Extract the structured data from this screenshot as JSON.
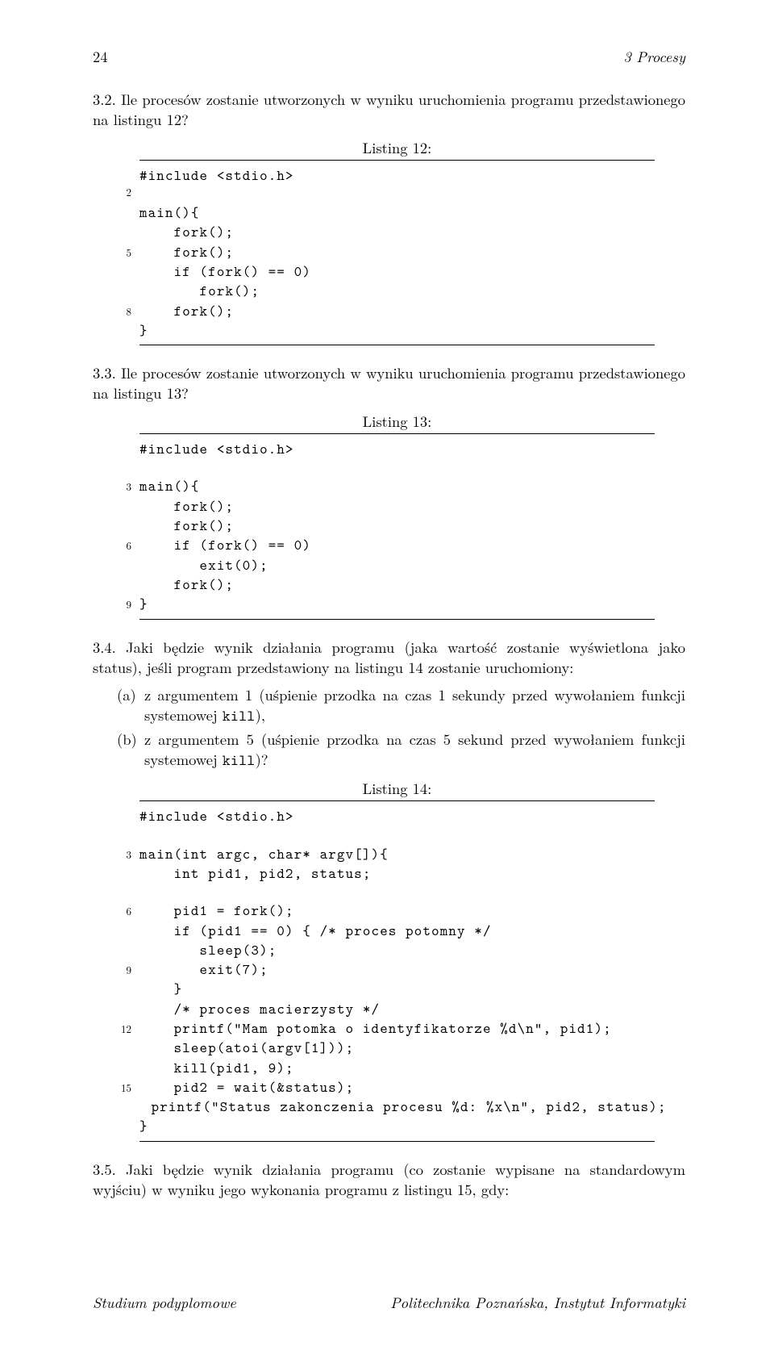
{
  "header": {
    "page_number": "24",
    "chapter": "3 Procesy"
  },
  "q32": {
    "label": "3.2.",
    "text": "Ile procesów zostanie utworzonych w wyniku uruchomienia programu przedstawionego na listingu 12?"
  },
  "listing12": {
    "caption": "Listing 12:",
    "lines": [
      {
        "n": "",
        "code": "#include <stdio.h>"
      },
      {
        "n": "2",
        "code": ""
      },
      {
        "n": "",
        "code": "main(){"
      },
      {
        "n": "",
        "code": "    fork();"
      },
      {
        "n": "5",
        "code": "    fork();"
      },
      {
        "n": "",
        "code": "    if (fork() == 0)"
      },
      {
        "n": "",
        "code": "       fork();"
      },
      {
        "n": "8",
        "code": "    fork();"
      },
      {
        "n": "",
        "code": "}"
      }
    ]
  },
  "q33": {
    "label": "3.3.",
    "text": "Ile procesów zostanie utworzonych w wyniku uruchomienia programu przedstawionego na listingu 13?"
  },
  "listing13": {
    "caption": "Listing 13:",
    "lines": [
      {
        "n": "",
        "code": "#include <stdio.h>"
      },
      {
        "n": "",
        "code": ""
      },
      {
        "n": "3",
        "code": "main(){"
      },
      {
        "n": "",
        "code": "    fork();"
      },
      {
        "n": "",
        "code": "    fork();"
      },
      {
        "n": "6",
        "code": "    if (fork() == 0)"
      },
      {
        "n": "",
        "code": "       exit(0);"
      },
      {
        "n": "",
        "code": "    fork();"
      },
      {
        "n": "9",
        "code": "}"
      }
    ]
  },
  "q34": {
    "label": "3.4.",
    "text": "Jaki będzie wynik działania programu (jaka wartość zostanie wyświetlona jako status), jeśli program przedstawiony na listingu 14 zostanie uruchomiony:"
  },
  "q34_items": {
    "a_label": "(a)",
    "a_pre": "z argumentem 1 (uśpienie przodka na czas 1 sekundy przed wywołaniem funkcji systemowej ",
    "a_tt": "kill",
    "a_post": "),",
    "b_label": "(b)",
    "b_pre": "z argumentem 5 (uśpienie przodka na czas 5 sekund przed wywołaniem funkcji systemowej ",
    "b_tt": "kill",
    "b_post": ")?"
  },
  "listing14": {
    "caption": "Listing 14:",
    "lines": [
      {
        "n": "",
        "code": "#include <stdio.h>"
      },
      {
        "n": "",
        "code": ""
      },
      {
        "n": "3",
        "code": "main(int argc, char* argv[]){"
      },
      {
        "n": "",
        "code": "    int pid1, pid2, status;"
      },
      {
        "n": "",
        "code": ""
      },
      {
        "n": "6",
        "code": "    pid1 = fork();"
      },
      {
        "n": "",
        "code": "    if (pid1 == 0) { /* proces potomny */"
      },
      {
        "n": "",
        "code": "       sleep(3);"
      },
      {
        "n": "9",
        "code": "       exit(7);"
      },
      {
        "n": "",
        "code": "    }"
      },
      {
        "n": "",
        "code": "    /* proces macierzysty */"
      },
      {
        "n": "12",
        "code": "    printf(\"Mam potomka o identyfikatorze %d\\n\", pid1);"
      },
      {
        "n": "",
        "code": "    sleep(atoi(argv[1]));"
      },
      {
        "n": "",
        "code": "    kill(pid1, 9);"
      },
      {
        "n": "15",
        "code": "    pid2 = wait(&status);"
      },
      {
        "n": "",
        "code": "    printf(\"Status zakonczenia procesu %d: %x\\n\", pid2, status);"
      },
      {
        "n": "",
        "code": "}"
      }
    ]
  },
  "q35": {
    "label": "3.5.",
    "text": "Jaki będzie wynik działania programu (co zostanie wypisane na standardowym wyjściu) w wyniku jego wykonania programu z listingu 15, gdy:"
  },
  "footer": {
    "left": "Studium podyplomowe",
    "right": "Politechnika Poznańska, Instytut Informatyki"
  }
}
